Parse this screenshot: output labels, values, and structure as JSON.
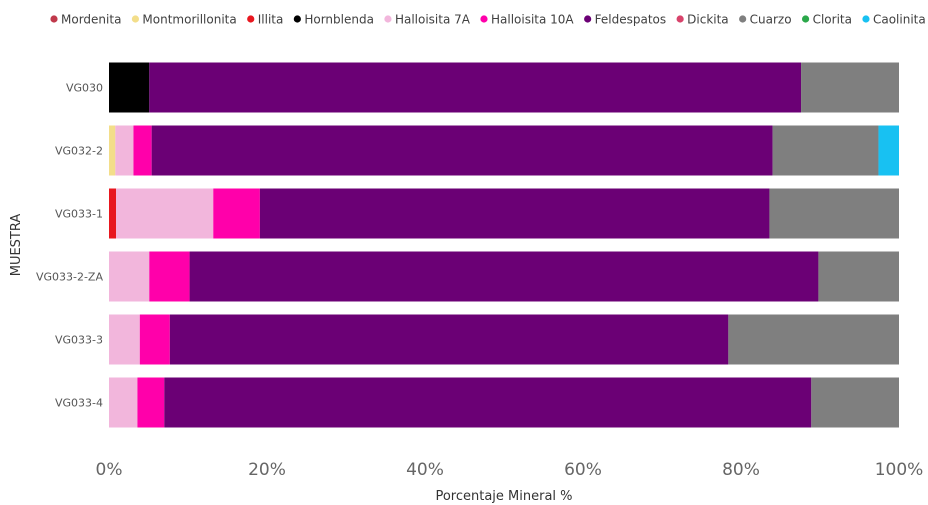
{
  "chart_data": {
    "type": "bar",
    "orientation": "horizontal",
    "stacked": "percent",
    "xlabel": "Porcentaje Mineral %",
    "ylabel": "MUESTRA",
    "xlim": [
      0,
      100
    ],
    "xticks": [
      "0%",
      "20%",
      "40%",
      "60%",
      "80%",
      "100%"
    ],
    "legend_position": "top",
    "categories": [
      "VG030",
      "VG032-2",
      "VG033-1",
      "VG033-2-ZA",
      "VG033-3",
      "VG033-4"
    ],
    "series": [
      {
        "name": "Mordenita",
        "color": "#C0394B",
        "values": [
          0,
          0,
          0,
          0,
          0,
          0
        ]
      },
      {
        "name": "Montmorillonita",
        "color": "#F3DE8A",
        "values": [
          0,
          0.8,
          0,
          0,
          0,
          0
        ]
      },
      {
        "name": "Illita",
        "color": "#E8171F",
        "values": [
          0,
          0,
          0.9,
          0,
          0,
          0
        ]
      },
      {
        "name": "Hornblenda",
        "color": "#000000",
        "values": [
          5.1,
          0,
          0,
          0,
          0,
          0
        ]
      },
      {
        "name": "Halloisita 7A",
        "color": "#F2B6DC",
        "values": [
          0,
          2.3,
          12.3,
          5.1,
          3.9,
          3.6
        ]
      },
      {
        "name": "Halloisita 10A",
        "color": "#FF00AA",
        "values": [
          0,
          2.3,
          5.9,
          5.1,
          3.8,
          3.4
        ]
      },
      {
        "name": "Feldespatos",
        "color": "#6B0075",
        "values": [
          82.5,
          78.6,
          64.5,
          79.6,
          70.7,
          81.9
        ]
      },
      {
        "name": "Dickita",
        "color": "#D8436B",
        "values": [
          0,
          0,
          0,
          0,
          0,
          0
        ]
      },
      {
        "name": "Cuarzo",
        "color": "#7F7F7F",
        "values": [
          12.4,
          13.4,
          16.4,
          10.2,
          21.6,
          11.1
        ]
      },
      {
        "name": "Clorita",
        "color": "#2BA84A",
        "values": [
          0,
          0,
          0,
          0,
          0,
          0
        ]
      },
      {
        "name": "Caolinita",
        "color": "#18C1F2",
        "values": [
          0,
          2.6,
          0,
          0,
          0,
          0
        ]
      }
    ]
  }
}
